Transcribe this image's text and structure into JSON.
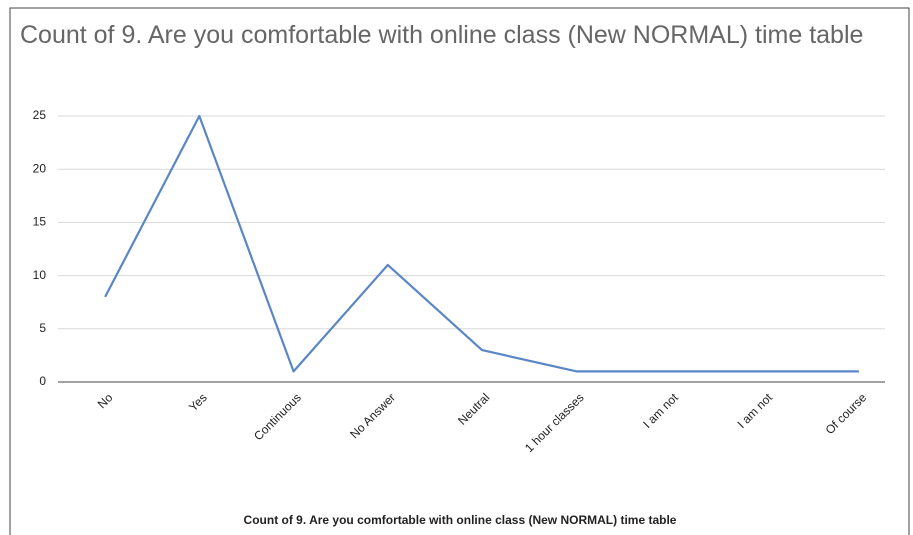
{
  "chart_data": {
    "type": "line",
    "title": "Count of 9. Are you comfortable with online class (New NORMAL) time table",
    "x_label": "Count of 9. Are you comfortable with online class (New NORMAL) time table",
    "categories": [
      "No",
      "Yes",
      "Continuous",
      "No Answer",
      "Neutral",
      "1 hour classes",
      "I am not",
      "I am not",
      "Of course"
    ],
    "values": [
      8,
      25,
      1,
      11,
      3,
      1,
      1,
      1,
      1
    ],
    "color": "#5b86c5",
    "ylim": [
      0,
      25
    ],
    "yticks": [
      0,
      5,
      10,
      15,
      20,
      25
    ],
    "grid": true
  }
}
